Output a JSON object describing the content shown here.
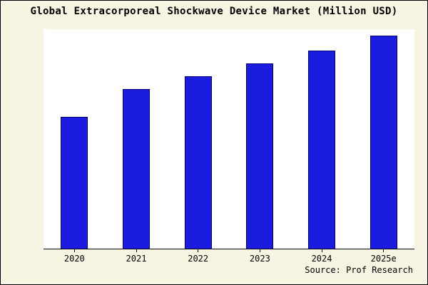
{
  "chart_data": {
    "type": "bar",
    "title": "Global Extracorporeal Shockwave Device Market (Million USD)",
    "categories": [
      "2020",
      "2021",
      "2022",
      "2023",
      "2024",
      "2025e"
    ],
    "values": [
      62,
      75,
      81,
      87,
      93,
      100
    ],
    "xlabel": "",
    "ylabel": "",
    "ylim": [
      0,
      103
    ],
    "grid": false,
    "legend": false,
    "bar_color": "#1c1ce0",
    "bar_edge_color": "#000080",
    "background_color": "#f7f4e1",
    "plot_background": "#ffffff",
    "source": "Source: Prof Research"
  }
}
